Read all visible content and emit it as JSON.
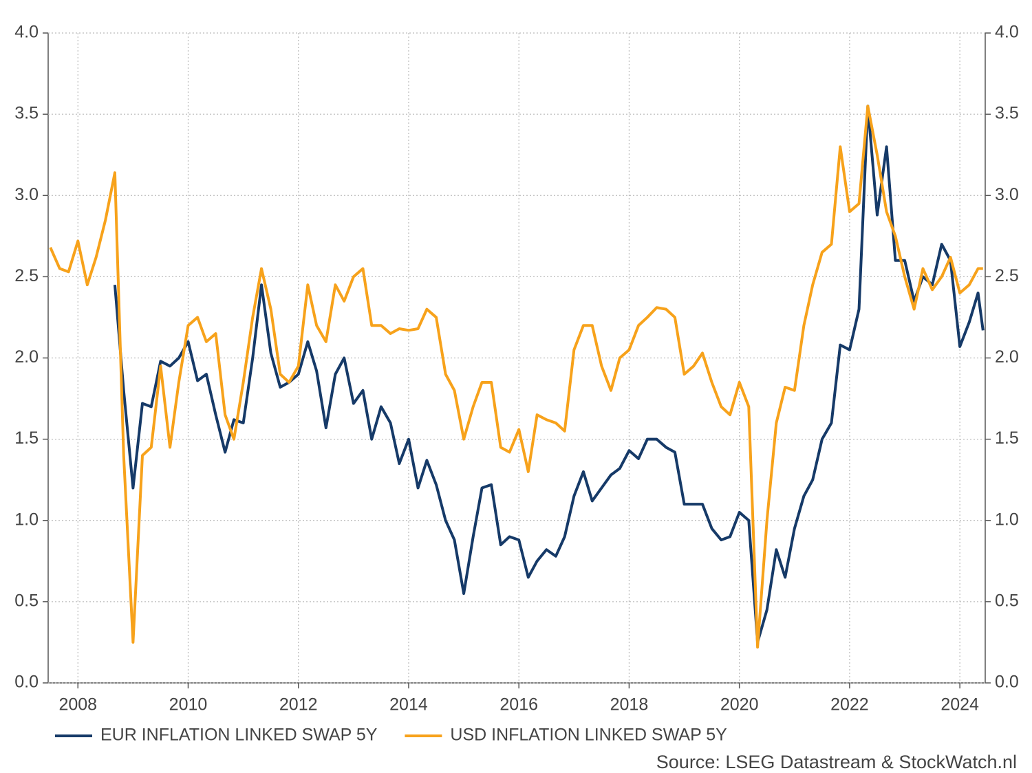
{
  "chart_data": {
    "type": "line",
    "x": [
      2007.5,
      2007.67,
      2007.83,
      2008,
      2008.17,
      2008.33,
      2008.5,
      2008.67,
      2008.83,
      2009,
      2009.17,
      2009.33,
      2009.5,
      2009.67,
      2009.83,
      2010,
      2010.17,
      2010.33,
      2010.5,
      2010.67,
      2010.83,
      2011,
      2011.17,
      2011.33,
      2011.5,
      2011.67,
      2011.83,
      2012,
      2012.17,
      2012.33,
      2012.5,
      2012.67,
      2012.83,
      2013,
      2013.17,
      2013.33,
      2013.5,
      2013.67,
      2013.83,
      2014,
      2014.17,
      2014.33,
      2014.5,
      2014.67,
      2014.83,
      2015,
      2015.17,
      2015.33,
      2015.5,
      2015.67,
      2015.83,
      2016,
      2016.17,
      2016.33,
      2016.5,
      2016.67,
      2016.83,
      2017,
      2017.17,
      2017.33,
      2017.5,
      2017.67,
      2017.83,
      2018,
      2018.17,
      2018.33,
      2018.5,
      2018.67,
      2018.83,
      2019,
      2019.17,
      2019.33,
      2019.5,
      2019.67,
      2019.83,
      2020,
      2020.17,
      2020.33,
      2020.5,
      2020.67,
      2020.83,
      2021,
      2021.17,
      2021.33,
      2021.5,
      2021.67,
      2021.83,
      2022,
      2022.17,
      2022.33,
      2022.5,
      2022.67,
      2022.83,
      2023,
      2023.17,
      2023.33,
      2023.5,
      2023.67,
      2023.83,
      2024,
      2024.17,
      2024.33,
      2024.42
    ],
    "series": [
      {
        "name": "EUR INFLATION LINKED SWAP 5Y",
        "color": "#163a68",
        "values": [
          null,
          null,
          null,
          null,
          null,
          null,
          null,
          2.45,
          1.8,
          1.2,
          1.72,
          1.7,
          1.98,
          1.95,
          2.0,
          2.1,
          1.86,
          1.9,
          1.65,
          1.42,
          1.62,
          1.6,
          2.0,
          2.45,
          2.03,
          1.82,
          1.85,
          1.9,
          2.1,
          1.92,
          1.57,
          1.9,
          2.0,
          1.72,
          1.8,
          1.5,
          1.7,
          1.6,
          1.35,
          1.5,
          1.2,
          1.37,
          1.22,
          1.0,
          0.88,
          0.55,
          0.9,
          1.2,
          1.22,
          0.85,
          0.9,
          0.88,
          0.65,
          0.75,
          0.82,
          0.78,
          0.9,
          1.15,
          1.3,
          1.12,
          1.2,
          1.28,
          1.32,
          1.43,
          1.38,
          1.5,
          1.5,
          1.45,
          1.42,
          1.1,
          1.1,
          1.1,
          0.95,
          0.88,
          0.9,
          1.05,
          1.0,
          0.25,
          0.45,
          0.82,
          0.65,
          0.95,
          1.15,
          1.25,
          1.5,
          1.6,
          2.08,
          2.05,
          2.3,
          3.55,
          2.88,
          3.3,
          2.6,
          2.6,
          2.35,
          2.5,
          2.45,
          2.7,
          2.6,
          2.07,
          2.22,
          2.4,
          2.17
        ]
      },
      {
        "name": "USD INFLATION LINKED SWAP 5Y",
        "color": "#f7a21b",
        "values": [
          2.68,
          2.55,
          2.53,
          2.72,
          2.45,
          2.62,
          2.85,
          3.14,
          1.4,
          0.25,
          1.4,
          1.45,
          1.95,
          1.45,
          1.85,
          2.2,
          2.25,
          2.1,
          2.15,
          1.65,
          1.5,
          1.85,
          2.25,
          2.55,
          2.3,
          1.9,
          1.85,
          1.95,
          2.45,
          2.2,
          2.1,
          2.45,
          2.35,
          2.5,
          2.55,
          2.2,
          2.2,
          2.15,
          2.18,
          2.17,
          2.18,
          2.3,
          2.25,
          1.9,
          1.8,
          1.5,
          1.7,
          1.85,
          1.85,
          1.45,
          1.42,
          1.56,
          1.3,
          1.65,
          1.62,
          1.6,
          1.55,
          2.05,
          2.2,
          2.2,
          1.95,
          1.8,
          2.0,
          2.05,
          2.2,
          2.25,
          2.31,
          2.3,
          2.25,
          1.9,
          1.95,
          2.03,
          1.85,
          1.7,
          1.65,
          1.85,
          1.7,
          0.22,
          1.0,
          1.6,
          1.82,
          1.8,
          2.2,
          2.45,
          2.65,
          2.7,
          3.3,
          2.9,
          2.95,
          3.55,
          3.25,
          2.9,
          2.75,
          2.5,
          2.3,
          2.55,
          2.42,
          2.5,
          2.62,
          2.4,
          2.45,
          2.55,
          2.55
        ]
      }
    ],
    "xlim": [
      2007.46,
      2024.46
    ],
    "xticks": [
      2008,
      2010,
      2012,
      2014,
      2016,
      2018,
      2020,
      2022,
      2024
    ],
    "ylim": [
      0,
      4
    ],
    "yticks": [
      {
        "value": 0,
        "label": "0.0"
      },
      0.5,
      {
        "value": 1,
        "label": "1.0"
      },
      1.5,
      {
        "value": 2,
        "label": "2.0"
      },
      2.5,
      {
        "value": 3,
        "label": "3.0"
      },
      3.5,
      {
        "value": 4,
        "label": "4.0"
      }
    ],
    "y2lim": [
      0,
      4
    ],
    "y2ticks": [
      {
        "value": 0,
        "label": "0.0"
      },
      0.5,
      {
        "value": 1,
        "label": "1.0"
      },
      1.5,
      {
        "value": 2,
        "label": "2.0"
      },
      2.5,
      {
        "value": 3,
        "label": "3.0"
      },
      3.5,
      {
        "value": 4,
        "label": "4.0"
      }
    ],
    "grid": true,
    "legend": "bottom-left",
    "source": "Source: LSEG Datastream & StockWatch.nl"
  }
}
